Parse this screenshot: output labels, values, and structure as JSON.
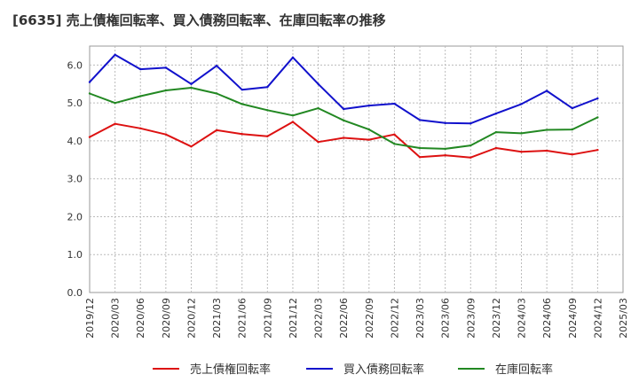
{
  "title": "[6635]  売上債権回転率、買入債務回転率、在庫回転率の推移",
  "chart_data": {
    "type": "line",
    "title": "[6635]  売上債権回転率、買入債務回転率、在庫回転率の推移",
    "xlabel": "",
    "ylabel": "",
    "ylim": [
      0,
      6.5
    ],
    "yticks": [
      "0.0",
      "1.0",
      "2.0",
      "3.0",
      "4.0",
      "5.0",
      "6.0"
    ],
    "grid": true,
    "legend_position": "bottom",
    "categories": [
      "2019/12",
      "2020/03",
      "2020/06",
      "2020/09",
      "2020/12",
      "2021/03",
      "2021/06",
      "2021/09",
      "2021/12",
      "2022/03",
      "2022/06",
      "2022/09",
      "2022/12",
      "2023/03",
      "2023/06",
      "2023/09",
      "2023/12",
      "2024/03",
      "2024/06",
      "2024/09",
      "2024/12",
      "2025/03"
    ],
    "series": [
      {
        "name": "売上債権回転率",
        "color": "#dd1111",
        "values": [
          4.1,
          4.45,
          4.33,
          4.17,
          3.85,
          4.28,
          4.18,
          4.12,
          4.5,
          3.97,
          4.08,
          4.03,
          4.17,
          3.57,
          3.62,
          3.56,
          3.81,
          3.71,
          3.74,
          3.64,
          3.76,
          null
        ]
      },
      {
        "name": "買入債務回転率",
        "color": "#1111cc",
        "values": [
          5.55,
          6.27,
          5.89,
          5.93,
          5.5,
          5.98,
          5.35,
          5.42,
          6.2,
          5.5,
          4.84,
          4.93,
          4.98,
          4.55,
          4.47,
          4.46,
          4.72,
          4.97,
          5.32,
          4.86,
          5.12,
          null
        ]
      },
      {
        "name": "在庫回転率",
        "color": "#228822",
        "values": [
          5.25,
          5.0,
          5.18,
          5.33,
          5.4,
          5.25,
          4.97,
          4.81,
          4.67,
          4.86,
          4.54,
          4.3,
          3.92,
          3.81,
          3.79,
          3.88,
          4.23,
          4.2,
          4.29,
          4.3,
          4.62,
          null
        ]
      }
    ]
  }
}
